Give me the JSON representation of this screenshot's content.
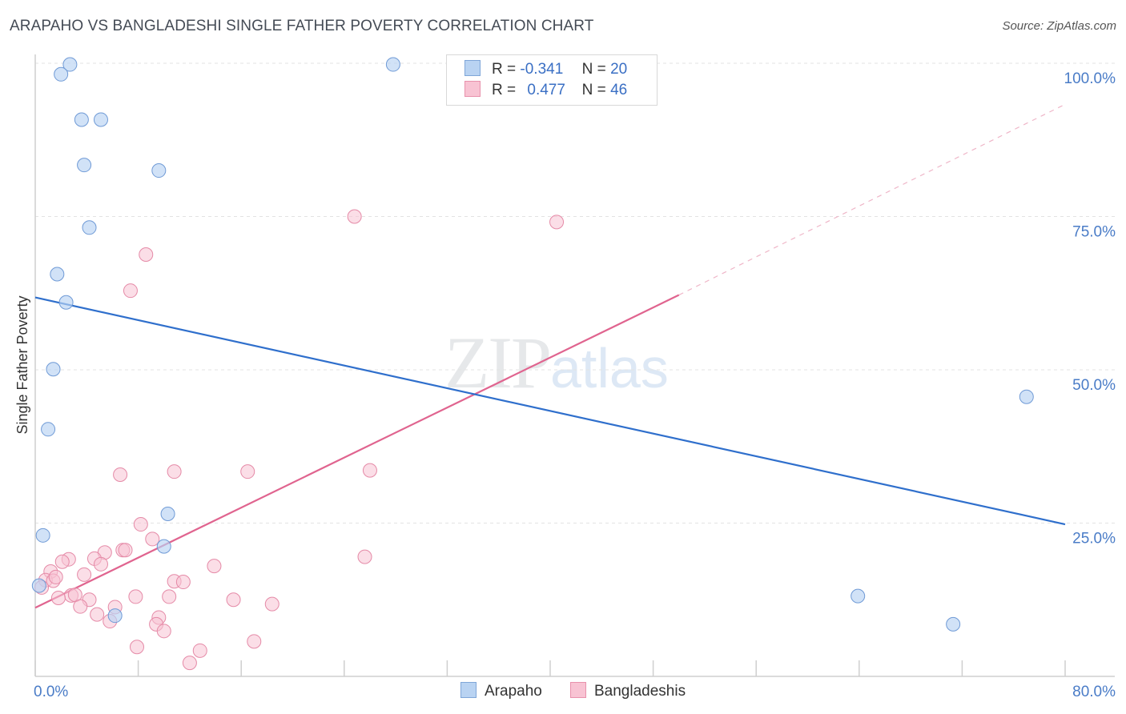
{
  "header": {
    "title": "ARAPAHO VS BANGLADESHI SINGLE FATHER POVERTY CORRELATION CHART",
    "source": "Source: ZipAtlas.com"
  },
  "watermark": {
    "zip": "ZIP",
    "atlas": "atlas"
  },
  "legend": {
    "series": [
      {
        "name": "Arapaho",
        "r_label": "R =",
        "r_value": "-0.341",
        "n_label": "N =",
        "n_value": "20",
        "color": "#a9c8ee",
        "edge": "#7fa6d8"
      },
      {
        "name": "Bangladeshis",
        "r_label": "R =",
        "r_value": "0.477",
        "n_label": "N =",
        "n_value": "46",
        "color": "#f7b8cb",
        "edge": "#e891ac"
      }
    ]
  },
  "colors": {
    "arapaho_fill": "#b9d3f2",
    "arapaho_edge": "#6f9ad6",
    "arapaho_line": "#2f6fcc",
    "bangla_fill": "#f8c3d3",
    "bangla_edge": "#e58aa7",
    "bangla_line": "#e0648f",
    "grid": "#e3e3e3",
    "axis": "#cfcfcf"
  },
  "chart_data": {
    "type": "scatter",
    "title": "ARAPAHO VS BANGLADESHI SINGLE FATHER POVERTY CORRELATION CHART",
    "xlabel": "",
    "ylabel": "Single Father Poverty",
    "xlim": [
      0,
      80
    ],
    "ylim": [
      0,
      100
    ],
    "x_tick_labels": [
      {
        "value": 0,
        "label": "0.0%"
      },
      {
        "value": 80,
        "label": "80.0%"
      }
    ],
    "y_tick_labels": [
      {
        "value": 25,
        "label": "25.0%"
      },
      {
        "value": 50,
        "label": "50.0%"
      },
      {
        "value": 75,
        "label": "75.0%"
      },
      {
        "value": 100,
        "label": "100.0%"
      }
    ],
    "series": [
      {
        "name": "Arapaho",
        "points": [
          [
            2.7,
            99.8
          ],
          [
            2.0,
            98.2
          ],
          [
            27.8,
            99.8
          ],
          [
            3.6,
            90.8
          ],
          [
            5.1,
            90.8
          ],
          [
            3.8,
            83.4
          ],
          [
            9.6,
            82.5
          ],
          [
            4.2,
            73.2
          ],
          [
            1.7,
            65.6
          ],
          [
            2.4,
            61.0
          ],
          [
            1.4,
            50.1
          ],
          [
            1.0,
            40.3
          ],
          [
            10.3,
            26.5
          ],
          [
            0.6,
            23.0
          ],
          [
            10.0,
            21.2
          ],
          [
            6.2,
            9.9
          ],
          [
            77.0,
            45.6
          ],
          [
            63.9,
            13.1
          ],
          [
            71.3,
            8.5
          ],
          [
            0.3,
            14.8
          ]
        ],
        "trend": {
          "x0": 0,
          "y0": 61.8,
          "x1": 80,
          "y1": 24.8
        }
      },
      {
        "name": "Bangladeshis",
        "points": [
          [
            24.8,
            75.0
          ],
          [
            40.5,
            74.1
          ],
          [
            8.6,
            68.8
          ],
          [
            7.4,
            62.9
          ],
          [
            6.6,
            32.9
          ],
          [
            10.8,
            33.4
          ],
          [
            16.5,
            33.4
          ],
          [
            26.0,
            33.6
          ],
          [
            8.2,
            24.8
          ],
          [
            9.1,
            22.4
          ],
          [
            6.8,
            20.6
          ],
          [
            7.0,
            20.6
          ],
          [
            5.4,
            20.2
          ],
          [
            4.6,
            19.2
          ],
          [
            2.6,
            19.1
          ],
          [
            2.1,
            18.7
          ],
          [
            5.1,
            18.3
          ],
          [
            13.9,
            18.0
          ],
          [
            25.6,
            19.5
          ],
          [
            1.2,
            17.1
          ],
          [
            3.8,
            16.6
          ],
          [
            0.8,
            15.7
          ],
          [
            1.4,
            15.6
          ],
          [
            1.6,
            16.2
          ],
          [
            10.8,
            15.5
          ],
          [
            11.5,
            15.4
          ],
          [
            0.5,
            14.5
          ],
          [
            2.8,
            13.2
          ],
          [
            3.1,
            13.3
          ],
          [
            1.8,
            12.8
          ],
          [
            7.8,
            13.0
          ],
          [
            10.4,
            13.0
          ],
          [
            15.4,
            12.5
          ],
          [
            18.4,
            11.8
          ],
          [
            4.2,
            12.5
          ],
          [
            3.5,
            11.4
          ],
          [
            6.2,
            11.3
          ],
          [
            4.8,
            10.1
          ],
          [
            5.8,
            9.0
          ],
          [
            9.6,
            9.6
          ],
          [
            9.4,
            8.5
          ],
          [
            10.0,
            7.4
          ],
          [
            7.9,
            4.8
          ],
          [
            17.0,
            5.7
          ],
          [
            12.8,
            4.2
          ],
          [
            12.0,
            2.2
          ]
        ],
        "trend": {
          "x0": 0,
          "y0": 11.2,
          "x1": 50,
          "y1": 62.2,
          "dash_to_x": 80,
          "dash_to_y": 93.3
        }
      }
    ]
  }
}
